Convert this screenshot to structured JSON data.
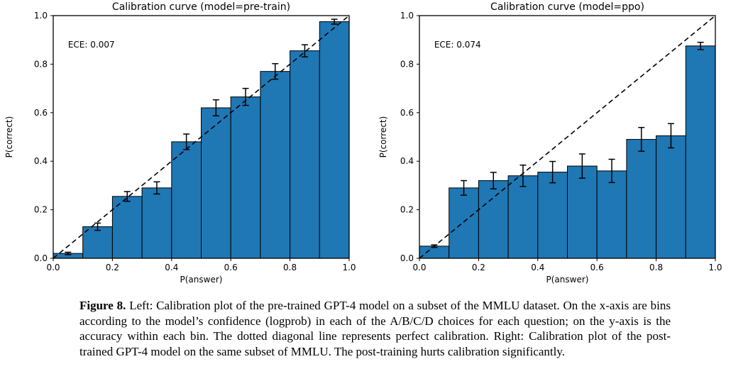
{
  "colors": {
    "background": "#ffffff",
    "bar_fill": "#1f77b4",
    "bar_edge": "#000000",
    "axis": "#000000",
    "text": "#000000",
    "diagonal": "#000000",
    "errorbar": "#000000"
  },
  "caption": {
    "label": "Figure 8.",
    "text": "Left: Calibration plot of the pre-trained GPT-4 model on a subset of the MMLU dataset. On the x-axis are bins according to the model’s confidence (logprob) in each of the A/B/C/D choices for each question; on the y-axis is the accuracy within each bin. The dotted diagonal line represents perfect calibration. Right: Calibration plot of the post-trained GPT-4 model on the same subset of MMLU. The post-training hurts calibration significantly."
  },
  "chart_data": [
    {
      "type": "bar",
      "title": "Calibration curve (model=pre-train)",
      "annotation": "ECE: 0.007",
      "annotation_pos": {
        "x": 0.05,
        "y": 0.88
      },
      "xlabel": "P(answer)",
      "ylabel": "P(correct)",
      "xlim": [
        0.0,
        1.0
      ],
      "ylim": [
        0.0,
        1.0
      ],
      "xticks": [
        "0.0",
        "0.2",
        "0.4",
        "0.6",
        "0.8",
        "1.0"
      ],
      "yticks": [
        "0.0",
        "0.2",
        "0.4",
        "0.6",
        "0.8",
        "1.0"
      ],
      "bin_left_edges": [
        0.0,
        0.1,
        0.2,
        0.3,
        0.4,
        0.5,
        0.6,
        0.7,
        0.8,
        0.9
      ],
      "bin_width": 0.1,
      "values": [
        0.02,
        0.13,
        0.255,
        0.29,
        0.48,
        0.62,
        0.665,
        0.77,
        0.855,
        0.975
      ],
      "errors": [
        0.005,
        0.015,
        0.02,
        0.025,
        0.032,
        0.033,
        0.035,
        0.032,
        0.025,
        0.01
      ],
      "diagonal": "perfect-calibration",
      "grid": false,
      "legend": "none"
    },
    {
      "type": "bar",
      "title": "Calibration curve (model=ppo)",
      "annotation": "ECE: 0.074",
      "annotation_pos": {
        "x": 0.05,
        "y": 0.88
      },
      "xlabel": "P(answer)",
      "ylabel": "P(correct)",
      "xlim": [
        0.0,
        1.0
      ],
      "ylim": [
        0.0,
        1.0
      ],
      "xticks": [
        "0.0",
        "0.2",
        "0.4",
        "0.6",
        "0.8",
        "1.0"
      ],
      "yticks": [
        "0.0",
        "0.2",
        "0.4",
        "0.6",
        "0.8",
        "1.0"
      ],
      "bin_left_edges": [
        0.0,
        0.1,
        0.2,
        0.3,
        0.4,
        0.5,
        0.6,
        0.7,
        0.8,
        0.9
      ],
      "bin_width": 0.1,
      "values": [
        0.05,
        0.29,
        0.32,
        0.34,
        0.355,
        0.38,
        0.36,
        0.49,
        0.505,
        0.875
      ],
      "errors": [
        0.005,
        0.03,
        0.034,
        0.044,
        0.044,
        0.05,
        0.048,
        0.049,
        0.05,
        0.015
      ],
      "diagonal": "perfect-calibration",
      "grid": false,
      "legend": "none"
    }
  ]
}
